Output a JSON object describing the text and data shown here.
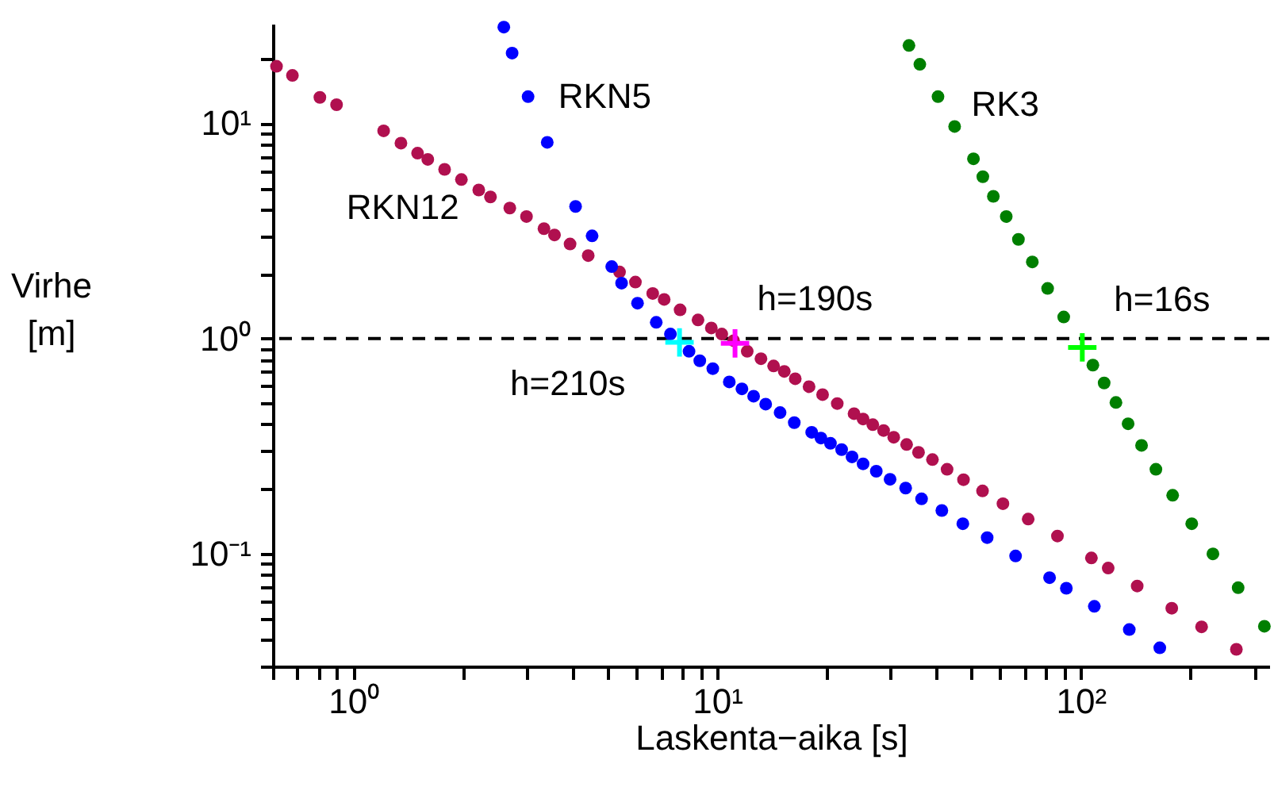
{
  "chart_data": {
    "type": "scatter",
    "xlabel": "Laskenta−aika [s]",
    "ylabel": "Virhe [m]",
    "log": "xy",
    "grid": false,
    "marker": "circle",
    "xlim": [
      0.6,
      330
    ],
    "ylim": [
      0.03,
      29
    ],
    "xticks": [
      {
        "value": 0.6,
        "label": null
      },
      {
        "value": 0.7,
        "label": null
      },
      {
        "value": 0.8,
        "label": null
      },
      {
        "value": 0.9,
        "label": null
      },
      {
        "value": 1,
        "label": "10⁰"
      },
      {
        "value": 2,
        "label": null
      },
      {
        "value": 3,
        "label": null
      },
      {
        "value": 4,
        "label": null
      },
      {
        "value": 5,
        "label": null
      },
      {
        "value": 6,
        "label": null
      },
      {
        "value": 7,
        "label": null
      },
      {
        "value": 8,
        "label": null
      },
      {
        "value": 9,
        "label": null
      },
      {
        "value": 10,
        "label": "10¹"
      },
      {
        "value": 20,
        "label": null
      },
      {
        "value": 30,
        "label": null
      },
      {
        "value": 40,
        "label": null
      },
      {
        "value": 50,
        "label": null
      },
      {
        "value": 60,
        "label": null
      },
      {
        "value": 70,
        "label": null
      },
      {
        "value": 80,
        "label": null
      },
      {
        "value": 90,
        "label": null
      },
      {
        "value": 100,
        "label": "10²"
      },
      {
        "value": 200,
        "label": null
      },
      {
        "value": 300,
        "label": null
      }
    ],
    "yticks": [
      {
        "value": 0.03,
        "label": null
      },
      {
        "value": 0.04,
        "label": null
      },
      {
        "value": 0.05,
        "label": null
      },
      {
        "value": 0.06,
        "label": null
      },
      {
        "value": 0.07,
        "label": null
      },
      {
        "value": 0.08,
        "label": null
      },
      {
        "value": 0.09,
        "label": null
      },
      {
        "value": 0.1,
        "label": "10⁻¹"
      },
      {
        "value": 0.2,
        "label": null
      },
      {
        "value": 0.3,
        "label": null
      },
      {
        "value": 0.4,
        "label": null
      },
      {
        "value": 0.5,
        "label": null
      },
      {
        "value": 0.6,
        "label": null
      },
      {
        "value": 0.7,
        "label": null
      },
      {
        "value": 0.8,
        "label": null
      },
      {
        "value": 0.9,
        "label": null
      },
      {
        "value": 1,
        "label": "10⁰"
      },
      {
        "value": 2,
        "label": null
      },
      {
        "value": 3,
        "label": null
      },
      {
        "value": 4,
        "label": null
      },
      {
        "value": 5,
        "label": null
      },
      {
        "value": 6,
        "label": null
      },
      {
        "value": 7,
        "label": null
      },
      {
        "value": 8,
        "label": null
      },
      {
        "value": 9,
        "label": null
      },
      {
        "value": 10,
        "label": "10¹"
      },
      {
        "value": 20,
        "label": null
      }
    ],
    "ref_lines": [
      {
        "axis": "y",
        "value": 1,
        "color": "#000000",
        "line_style": "dashed"
      }
    ],
    "annotations": [
      {
        "text": "h=210s",
        "x": 7.88,
        "y": 0.96
      },
      {
        "text": "h=190s",
        "x": 11.2,
        "y": 0.95
      },
      {
        "text": "h=16s",
        "x": 101,
        "y": 0.91
      }
    ],
    "series": [
      {
        "name": "RKN12",
        "color": "#b0104f",
        "x": [
          0.614,
          0.679,
          0.808,
          0.898,
          1.21,
          1.35,
          1.5,
          1.6,
          1.78,
          1.98,
          2.21,
          2.38,
          2.69,
          2.99,
          3.34,
          3.57,
          3.94,
          4.42,
          5.39,
          5.96,
          6.65,
          7.15,
          7.91,
          8.86,
          9.64,
          10.3,
          11.1,
          12.1,
          13.2,
          14.3,
          15.3,
          16.4,
          17.9,
          19.5,
          21.4,
          23.8,
          25.2,
          26.8,
          28.7,
          30.6,
          33.2,
          35.8,
          39.1,
          42.9,
          47.6,
          53.7,
          61.1,
          71.7,
          86.3,
          107,
          119,
          143,
          178,
          215,
          268
        ],
        "values": [
          18.4,
          16.7,
          13.2,
          12.2,
          9.23,
          8.09,
          7.27,
          6.8,
          6.11,
          5.48,
          4.9,
          4.55,
          4.04,
          3.69,
          3.24,
          3.03,
          2.75,
          2.43,
          2.04,
          1.83,
          1.62,
          1.52,
          1.36,
          1.22,
          1.12,
          1.05,
          0.978,
          0.873,
          0.806,
          0.746,
          0.704,
          0.651,
          0.598,
          0.549,
          0.499,
          0.448,
          0.423,
          0.398,
          0.374,
          0.348,
          0.322,
          0.296,
          0.274,
          0.247,
          0.221,
          0.196,
          0.171,
          0.145,
          0.121,
          0.0957,
          0.0859,
          0.0709,
          0.0559,
          0.0458,
          0.036
        ]
      },
      {
        "name": "RKN5",
        "color": "#0000ff",
        "x": [
          2.59,
          2.73,
          3.02,
          3.41,
          4.08,
          4.53,
          5.13,
          5.46,
          6.04,
          6.8,
          7.44,
          8.37,
          8.96,
          9.73,
          10.8,
          11.7,
          12.6,
          13.6,
          14.9,
          16.3,
          18.2,
          19.3,
          20.5,
          22,
          23.5,
          25.2,
          27.4,
          29.9,
          33,
          36.5,
          41.5,
          47.4,
          55.3,
          66.2,
          82.1,
          91.3,
          109,
          136,
          165
        ],
        "values": [
          28,
          21.2,
          13.3,
          8.16,
          4.11,
          3,
          2.16,
          1.81,
          1.46,
          1.19,
          1.05,
          0.873,
          0.789,
          0.725,
          0.629,
          0.584,
          0.54,
          0.496,
          0.453,
          0.407,
          0.367,
          0.345,
          0.326,
          0.305,
          0.282,
          0.262,
          0.242,
          0.222,
          0.202,
          0.18,
          0.159,
          0.138,
          0.119,
          0.0977,
          0.0775,
          0.0692,
          0.057,
          0.0445,
          0.0366
        ]
      },
      {
        "name": "RK3",
        "color": "#007f00",
        "x": [
          33.7,
          36.1,
          40.5,
          45,
          50.7,
          53.8,
          57.5,
          62.4,
          67.4,
          73.6,
          81.1,
          89.8,
          108,
          116,
          125,
          135,
          147,
          161,
          179,
          202,
          231,
          271,
          320
        ],
        "values": [
          23,
          18.8,
          13.3,
          9.67,
          6.84,
          5.65,
          4.58,
          3.69,
          2.89,
          2.27,
          1.71,
          1.26,
          0.753,
          0.622,
          0.505,
          0.402,
          0.319,
          0.247,
          0.187,
          0.138,
          0.1,
          0.0696,
          0.0461
        ]
      },
      {
        "color": "#00ffff",
        "marker": "cross",
        "x": [
          7.88
        ],
        "values": [
          0.96
        ]
      },
      {
        "color": "#ff00ff",
        "marker": "cross",
        "x": [
          11.2
        ],
        "values": [
          0.95
        ]
      },
      {
        "color": "#00ff00",
        "marker": "cross",
        "x": [
          101
        ],
        "values": [
          0.91
        ]
      }
    ]
  }
}
